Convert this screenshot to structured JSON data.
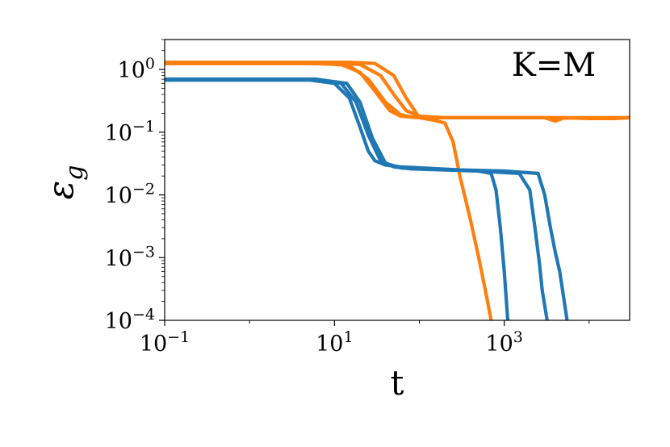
{
  "chart_data": {
    "type": "line",
    "xlabel": "t",
    "ylabel": "ε",
    "ylabel_sub": "g",
    "xscale": "log",
    "yscale": "log",
    "xlim": [
      0.1,
      30000
    ],
    "ylim": [
      0.0001,
      3
    ],
    "grid": false,
    "annotation": "K=M",
    "x_ticks": [
      {
        "base": "10",
        "exp": "−1",
        "value": 0.1
      },
      {
        "base": "10",
        "exp": "1",
        "value": 10
      },
      {
        "base": "10",
        "exp": "3",
        "value": 1000
      }
    ],
    "y_ticks": [
      {
        "base": "10",
        "exp": "0",
        "value": 1
      },
      {
        "base": "10",
        "exp": "−1",
        "value": 0.1
      },
      {
        "base": "10",
        "exp": "−2",
        "value": 0.01
      },
      {
        "base": "10",
        "exp": "−3",
        "value": 0.001
      },
      {
        "base": "10",
        "exp": "−4",
        "value": 0.0001
      }
    ],
    "colors": {
      "blue": "#1f77b4",
      "orange": "#ff7f0e"
    },
    "series": [
      {
        "color": "#ff7f0e",
        "x": [
          0.1,
          5,
          12,
          20,
          30,
          45,
          60,
          100,
          1000,
          5000,
          10000,
          20000,
          30000
        ],
        "y": [
          1.25,
          1.25,
          1.2,
          0.9,
          0.45,
          0.22,
          0.18,
          0.17,
          0.17,
          0.17,
          0.165,
          0.165,
          0.17
        ]
      },
      {
        "color": "#ff7f0e",
        "x": [
          0.1,
          8,
          15,
          25,
          40,
          60,
          80,
          150,
          1000,
          3000,
          4000,
          5000,
          10000,
          30000
        ],
        "y": [
          1.25,
          1.25,
          1.15,
          0.7,
          0.3,
          0.19,
          0.175,
          0.17,
          0.17,
          0.17,
          0.15,
          0.168,
          0.168,
          0.17
        ]
      },
      {
        "color": "#ff7f0e",
        "x": [
          0.1,
          10,
          20,
          35,
          50,
          70,
          100,
          200,
          10000,
          30000
        ],
        "y": [
          1.28,
          1.28,
          1.2,
          0.8,
          0.4,
          0.22,
          0.18,
          0.17,
          0.17,
          0.17
        ]
      },
      {
        "color": "#ff7f0e",
        "x": [
          0.1,
          15,
          30,
          50,
          70,
          100,
          150,
          200,
          250,
          300,
          400,
          500,
          600,
          700
        ],
        "y": [
          1.3,
          1.3,
          1.25,
          0.8,
          0.35,
          0.17,
          0.155,
          0.14,
          0.07,
          0.02,
          0.004,
          0.001,
          0.0003,
          0.0001
        ]
      },
      {
        "color": "#1f77b4",
        "x": [
          0.1,
          5,
          10,
          15,
          20,
          25,
          30,
          40,
          60,
          100,
          300,
          500,
          700,
          800,
          900,
          1000,
          1100
        ],
        "y": [
          0.68,
          0.68,
          0.6,
          0.35,
          0.12,
          0.05,
          0.035,
          0.03,
          0.028,
          0.027,
          0.025,
          0.024,
          0.022,
          0.012,
          0.003,
          0.0006,
          0.0001
        ]
      },
      {
        "color": "#1f77b4",
        "x": [
          0.1,
          6,
          12,
          18,
          25,
          35,
          50,
          80,
          500,
          1500,
          2000,
          2300,
          2600,
          2800,
          3200
        ],
        "y": [
          0.68,
          0.68,
          0.6,
          0.3,
          0.09,
          0.035,
          0.028,
          0.026,
          0.024,
          0.022,
          0.012,
          0.003,
          0.0008,
          0.0003,
          0.0001
        ]
      },
      {
        "color": "#1f77b4",
        "x": [
          0.1,
          6,
          14,
          20,
          28,
          40,
          60,
          100,
          1000,
          2500,
          3000,
          3500,
          4000,
          4500,
          5500
        ],
        "y": [
          0.7,
          0.7,
          0.6,
          0.3,
          0.08,
          0.032,
          0.027,
          0.026,
          0.024,
          0.022,
          0.01,
          0.003,
          0.0012,
          0.0006,
          0.0001
        ]
      }
    ]
  }
}
